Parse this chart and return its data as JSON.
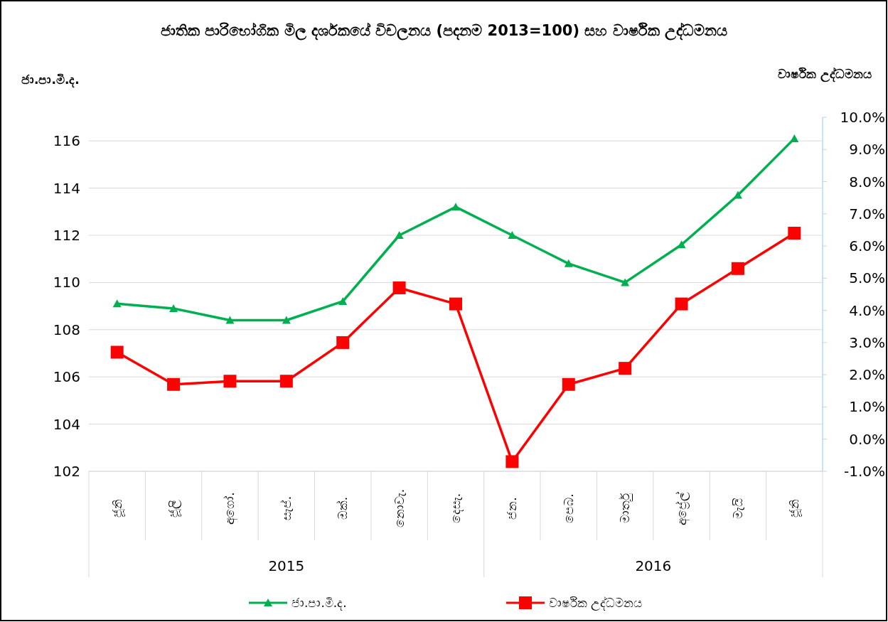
{
  "chart_data": {
    "type": "line",
    "title": "ජාතික පාරිභෝගික මිල දර්ශකයේ විචලනය (පදනම 2013=100) සහ වාර්ෂික උද්ධමනය",
    "ylabel": "ජා.පා.මි.ද.",
    "y2label": "වාර්ෂික උද්ධමනය",
    "categories": [
      "ජූනි",
      "ජූලි",
      "අගෝ.",
      "සැප්.",
      "ඔක්.",
      "නොවැ.",
      "දෙසැ.",
      "ජන.",
      "පෙබ.",
      "මාර්තු",
      "අප්‍රේල්",
      "මැයි",
      "ජූනි"
    ],
    "annotations": [
      "2015",
      "2016"
    ],
    "series": [
      {
        "name": "ජා.පා.මි.ද.",
        "color": "#00b050",
        "marker": "triangle",
        "values": [
          109.1,
          108.9,
          108.4,
          108.4,
          109.2,
          112.0,
          113.2,
          112.0,
          110.8,
          110.0,
          111.6,
          113.7,
          116.1
        ]
      },
      {
        "name": "වාර්ෂික උද්ධමනය",
        "color": "#ff0000",
        "marker": "square",
        "axis": "y2",
        "values": [
          2.7,
          1.7,
          1.8,
          1.8,
          3.0,
          4.7,
          4.2,
          -0.7,
          1.7,
          2.2,
          4.2,
          5.3,
          6.4
        ]
      }
    ],
    "ylim": [
      102,
      117
    ],
    "yticks": [
      102,
      104,
      106,
      108,
      110,
      112,
      114,
      116
    ],
    "y2lim": [
      -1,
      10
    ],
    "y2ticks": [
      {
        "value": -1,
        "label": "-1.0%"
      },
      {
        "value": 0,
        "label": "0.0%"
      },
      {
        "value": 1,
        "label": "1.0%"
      },
      {
        "value": 2,
        "label": "2.0%"
      },
      {
        "value": 3,
        "label": "3.0%"
      },
      {
        "value": 4,
        "label": "4.0%"
      },
      {
        "value": 5,
        "label": "5.0%"
      },
      {
        "value": 6,
        "label": "6.0%"
      },
      {
        "value": 7,
        "label": "7.0%"
      },
      {
        "value": 8,
        "label": "8.0%"
      },
      {
        "value": 9,
        "label": "9.0%"
      },
      {
        "value": 10,
        "label": "10.0%"
      }
    ],
    "grid": "y",
    "legend": "bottom",
    "line_style": "solid"
  }
}
